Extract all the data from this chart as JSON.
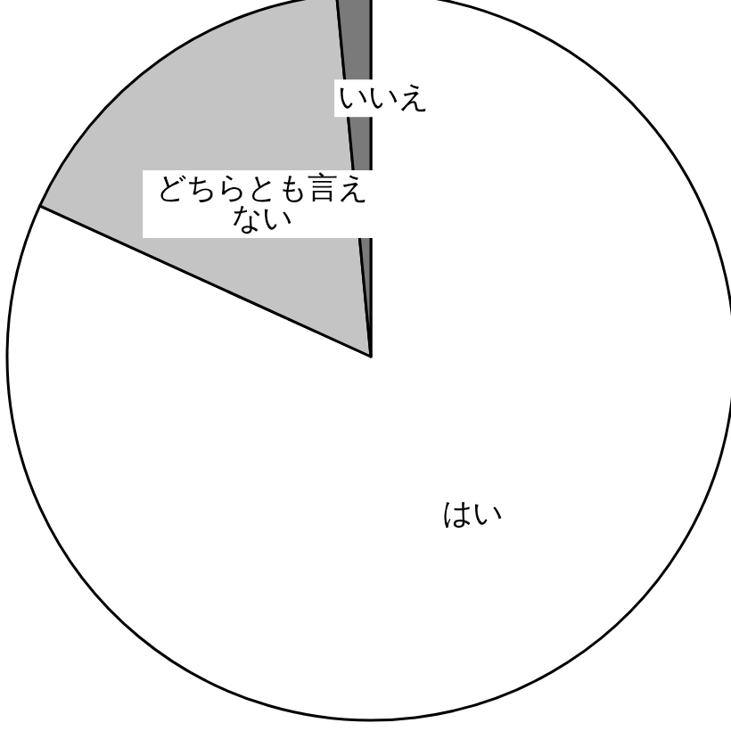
{
  "chart_data": {
    "type": "pie",
    "categories": [
      "はい",
      "どちらとも言えない",
      "いいえ"
    ],
    "values": [
      81.8,
      16.7,
      1.5
    ],
    "colors": [
      "#ffffff",
      "#c4c4c4",
      "#7a7a7a"
    ],
    "legend": false
  }
}
